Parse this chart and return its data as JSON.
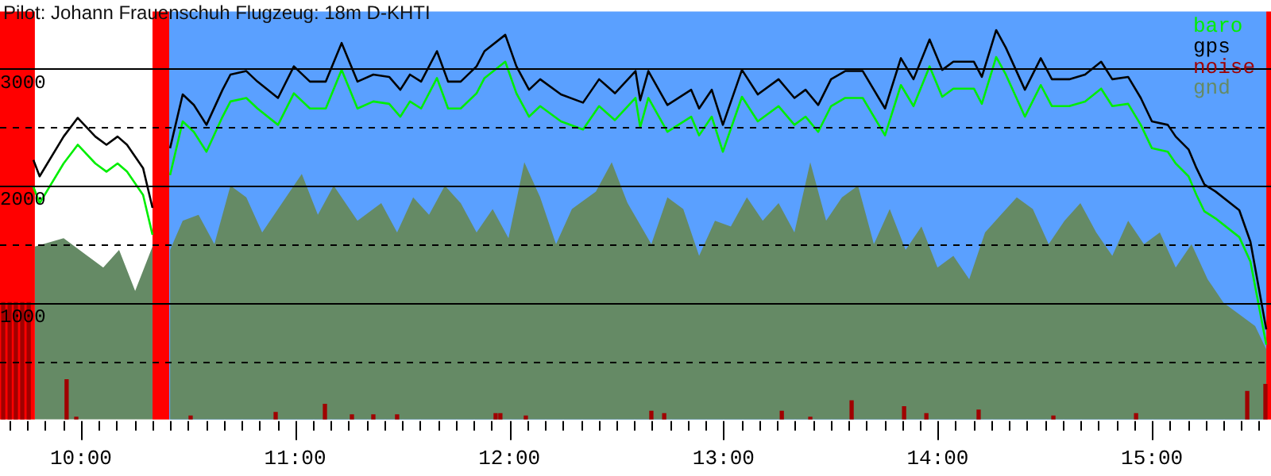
{
  "chart_data": {
    "type": "line",
    "title": "Pilot: Johann Frauenschuh Flugzeug: 18m D-KHTI",
    "xlim": [
      9.622,
      15.556
    ],
    "ylim": [
      0,
      3490
    ],
    "xticks": [
      {
        "value": 9.6667,
        "label": null
      },
      {
        "value": 9.75,
        "label": null
      },
      {
        "value": 9.8333,
        "label": null
      },
      {
        "value": 9.9167,
        "label": null
      },
      {
        "value": 10,
        "label": "10:00"
      },
      {
        "value": 10.0833,
        "label": null
      },
      {
        "value": 10.1667,
        "label": null
      },
      {
        "value": 10.25,
        "label": null
      },
      {
        "value": 10.3333,
        "label": null
      },
      {
        "value": 10.4167,
        "label": null
      },
      {
        "value": 10.5,
        "label": null
      },
      {
        "value": 10.5833,
        "label": null
      },
      {
        "value": 10.6667,
        "label": null
      },
      {
        "value": 10.75,
        "label": null
      },
      {
        "value": 10.8333,
        "label": null
      },
      {
        "value": 10.9167,
        "label": null
      },
      {
        "value": 11,
        "label": "11:00"
      },
      {
        "value": 11.0833,
        "label": null
      },
      {
        "value": 11.1667,
        "label": null
      },
      {
        "value": 11.25,
        "label": null
      },
      {
        "value": 11.3333,
        "label": null
      },
      {
        "value": 11.4167,
        "label": null
      },
      {
        "value": 11.5,
        "label": null
      },
      {
        "value": 11.5833,
        "label": null
      },
      {
        "value": 11.6667,
        "label": null
      },
      {
        "value": 11.75,
        "label": null
      },
      {
        "value": 11.8333,
        "label": null
      },
      {
        "value": 11.9167,
        "label": null
      },
      {
        "value": 12,
        "label": "12:00"
      },
      {
        "value": 12.0833,
        "label": null
      },
      {
        "value": 12.1667,
        "label": null
      },
      {
        "value": 12.25,
        "label": null
      },
      {
        "value": 12.3333,
        "label": null
      },
      {
        "value": 12.4167,
        "label": null
      },
      {
        "value": 12.5,
        "label": null
      },
      {
        "value": 12.5833,
        "label": null
      },
      {
        "value": 12.6667,
        "label": null
      },
      {
        "value": 12.75,
        "label": null
      },
      {
        "value": 12.8333,
        "label": null
      },
      {
        "value": 12.9167,
        "label": null
      },
      {
        "value": 13,
        "label": "13:00"
      },
      {
        "value": 13.0833,
        "label": null
      },
      {
        "value": 13.1667,
        "label": null
      },
      {
        "value": 13.25,
        "label": null
      },
      {
        "value": 13.3333,
        "label": null
      },
      {
        "value": 13.4167,
        "label": null
      },
      {
        "value": 13.5,
        "label": null
      },
      {
        "value": 13.5833,
        "label": null
      },
      {
        "value": 13.6667,
        "label": null
      },
      {
        "value": 13.75,
        "label": null
      },
      {
        "value": 13.8333,
        "label": null
      },
      {
        "value": 13.9167,
        "label": null
      },
      {
        "value": 14,
        "label": "14:00"
      },
      {
        "value": 14.0833,
        "label": null
      },
      {
        "value": 14.1667,
        "label": null
      },
      {
        "value": 14.25,
        "label": null
      },
      {
        "value": 14.3333,
        "label": null
      },
      {
        "value": 14.4167,
        "label": null
      },
      {
        "value": 14.5,
        "label": null
      },
      {
        "value": 14.5833,
        "label": null
      },
      {
        "value": 14.6667,
        "label": null
      },
      {
        "value": 14.75,
        "label": null
      },
      {
        "value": 14.8333,
        "label": null
      },
      {
        "value": 14.9167,
        "label": null
      },
      {
        "value": 15,
        "label": "15:00"
      },
      {
        "value": 15.0833,
        "label": null
      },
      {
        "value": 15.1667,
        "label": null
      },
      {
        "value": 15.25,
        "label": null
      },
      {
        "value": 15.3333,
        "label": null
      },
      {
        "value": 15.4167,
        "label": null
      },
      {
        "value": 15.5,
        "label": null
      }
    ],
    "yticks": [
      {
        "value": 500,
        "label": null
      },
      1000,
      {
        "value": 1500,
        "label": null
      },
      2000,
      {
        "value": 2500,
        "label": null
      },
      3000
    ],
    "grid": "y",
    "legend": "top right",
    "marker": "none",
    "line_style": "solid",
    "bands": [
      {
        "axis": "x",
        "from": 9.622,
        "to": 9.785,
        "color": "#ff0000"
      },
      {
        "axis": "x",
        "from": 9.785,
        "to": 10.334,
        "color": "#ffffff"
      },
      {
        "axis": "x",
        "from": 10.334,
        "to": 10.412,
        "color": "#ff0000"
      },
      {
        "axis": "x",
        "from": 10.412,
        "to": 15.534,
        "color": "#5aa0ff"
      },
      {
        "axis": "x",
        "from": 15.534,
        "to": 15.556,
        "color": "#ff0000"
      }
    ],
    "series": [
      {
        "name": "baro",
        "color": "#00ee00",
        "x": [
          9.778,
          9.807,
          9.919,
          9.985,
          10.067,
          10.119,
          10.171,
          10.215,
          10.29,
          10.334,
          10.364,
          10.416,
          10.475,
          10.527,
          10.586,
          10.661,
          10.698,
          10.772,
          10.824,
          10.92,
          10.994,
          11.069,
          11.143,
          11.217,
          11.291,
          11.365,
          11.439,
          11.491,
          11.536,
          11.588,
          11.662,
          11.714,
          11.773,
          11.847,
          11.884,
          11.981,
          12.033,
          12.092,
          12.144,
          12.241,
          12.344,
          12.419,
          12.493,
          12.589,
          12.611,
          12.649,
          12.738,
          12.849,
          12.886,
          12.945,
          12.997,
          13.086,
          13.16,
          13.257,
          13.331,
          13.383,
          13.442,
          13.502,
          13.568,
          13.65,
          13.754,
          13.828,
          13.887,
          13.962,
          14.021,
          14.073,
          14.169,
          14.206,
          14.273,
          14.318,
          14.407,
          14.481,
          14.533,
          14.614,
          14.688,
          14.763,
          14.815,
          14.889,
          14.948,
          15,
          15.074,
          15.111,
          15.171,
          15.208,
          15.245,
          15.297,
          15.408,
          15.46,
          15.534
        ],
        "values": [
          1990,
          1850,
          2190,
          2350,
          2190,
          2120,
          2190,
          2120,
          1920,
          1580,
          null,
          2090,
          2550,
          2460,
          2290,
          2590,
          2720,
          2750,
          2660,
          2520,
          2790,
          2660,
          2660,
          2990,
          2660,
          2720,
          2700,
          2590,
          2720,
          2660,
          2920,
          2660,
          2660,
          2790,
          2920,
          3060,
          2790,
          2590,
          2680,
          2550,
          2480,
          2680,
          2560,
          2750,
          2500,
          2750,
          2460,
          2590,
          2430,
          2590,
          2290,
          2760,
          2550,
          2680,
          2520,
          2590,
          2460,
          2680,
          2750,
          2750,
          2430,
          2860,
          2680,
          3020,
          2760,
          2830,
          2830,
          2700,
          3100,
          2950,
          2590,
          2860,
          2680,
          2680,
          2720,
          2830,
          2680,
          2700,
          2520,
          2320,
          2290,
          2190,
          2080,
          1920,
          1780,
          1720,
          1560,
          1350,
          640
        ]
      },
      {
        "name": "gps",
        "color": "#000000",
        "x": [
          9.778,
          9.807,
          9.919,
          9.985,
          10.067,
          10.119,
          10.171,
          10.215,
          10.29,
          10.334,
          10.364,
          10.416,
          10.475,
          10.527,
          10.586,
          10.661,
          10.698,
          10.772,
          10.824,
          10.92,
          10.994,
          11.069,
          11.143,
          11.217,
          11.291,
          11.365,
          11.439,
          11.491,
          11.536,
          11.588,
          11.662,
          11.714,
          11.773,
          11.847,
          11.884,
          11.981,
          12.033,
          12.092,
          12.144,
          12.241,
          12.344,
          12.419,
          12.493,
          12.589,
          12.611,
          12.649,
          12.738,
          12.849,
          12.886,
          12.945,
          12.997,
          13.086,
          13.16,
          13.257,
          13.331,
          13.383,
          13.442,
          13.502,
          13.568,
          13.65,
          13.754,
          13.828,
          13.887,
          13.962,
          14.021,
          14.073,
          14.169,
          14.206,
          14.273,
          14.318,
          14.407,
          14.481,
          14.533,
          14.614,
          14.688,
          14.763,
          14.815,
          14.889,
          14.948,
          15,
          15.074,
          15.111,
          15.171,
          15.208,
          15.245,
          15.297,
          15.408,
          15.46,
          15.534
        ],
        "values": [
          2220,
          2080,
          2420,
          2580,
          2420,
          2350,
          2420,
          2350,
          2150,
          1810,
          null,
          2320,
          2780,
          2690,
          2520,
          2820,
          2950,
          2980,
          2890,
          2750,
          3020,
          2890,
          2890,
          3220,
          2890,
          2950,
          2930,
          2820,
          2950,
          2890,
          3150,
          2890,
          2890,
          3020,
          3150,
          3290,
          3020,
          2820,
          2910,
          2780,
          2710,
          2910,
          2790,
          2980,
          2730,
          2980,
          2690,
          2820,
          2660,
          2820,
          2520,
          2990,
          2780,
          2910,
          2750,
          2820,
          2690,
          2910,
          2980,
          2980,
          2660,
          3090,
          2910,
          3250,
          2990,
          3060,
          3060,
          2930,
          3330,
          3180,
          2820,
          3090,
          2910,
          2910,
          2950,
          3060,
          2910,
          2930,
          2750,
          2550,
          2520,
          2420,
          2310,
          2150,
          2010,
          1950,
          1790,
          1520,
          770
        ]
      },
      {
        "name": "noise",
        "color": "#a00000",
        "type": "bar",
        "x": [
          9.637,
          9.667,
          9.696,
          9.726,
          9.756,
          9.933,
          9.978,
          10.512,
          10.909,
          11.139,
          11.265,
          11.365,
          11.476,
          11.936,
          11.958,
          12.077,
          12.663,
          12.723,
          13.272,
          13.405,
          13.598,
          13.843,
          13.947,
          14.191,
          14.54,
          14.926,
          15.445,
          15.53
        ],
        "values": [
          1000,
          1000,
          1000,
          1000,
          1000,
          340,
          20,
          30,
          60,
          130,
          40,
          40,
          40,
          50,
          50,
          30,
          70,
          50,
          70,
          20,
          160,
          110,
          50,
          80,
          30,
          50,
          240,
          300
        ]
      },
      {
        "name": "gnd",
        "color": "#658a65",
        "type": "area",
        "x": [
          9.785,
          9.919,
          10.03,
          10.104,
          10.178,
          10.253,
          10.334,
          10.364,
          10.416,
          10.475,
          10.549,
          10.623,
          10.698,
          10.772,
          10.846,
          10.92,
          11.031,
          11.106,
          11.18,
          11.291,
          11.402,
          11.476,
          11.551,
          11.625,
          11.699,
          11.773,
          11.847,
          11.922,
          11.996,
          12.07,
          12.144,
          12.218,
          12.292,
          12.404,
          12.478,
          12.552,
          12.663,
          12.738,
          12.812,
          12.886,
          12.96,
          13.034,
          13.109,
          13.183,
          13.257,
          13.331,
          13.405,
          13.479,
          13.553,
          13.628,
          13.702,
          13.776,
          13.85,
          13.924,
          13.999,
          14.073,
          14.147,
          14.221,
          14.295,
          14.369,
          14.444,
          14.518,
          14.592,
          14.666,
          14.74,
          14.815,
          14.889,
          14.963,
          15.037,
          15.111,
          15.185,
          15.26,
          15.334,
          15.408,
          15.482,
          15.534
        ],
        "values": [
          1480,
          1550,
          1400,
          1300,
          1450,
          1100,
          1480,
          null,
          1450,
          1700,
          1750,
          1500,
          2000,
          1900,
          1600,
          1800,
          2100,
          1750,
          2000,
          1700,
          1850,
          1600,
          1900,
          1750,
          2000,
          1850,
          1600,
          1800,
          1550,
          2200,
          1900,
          1500,
          1800,
          1950,
          2200,
          1850,
          1500,
          1900,
          1800,
          1400,
          1700,
          1650,
          1900,
          1700,
          1850,
          1600,
          2200,
          1700,
          1900,
          2000,
          1500,
          1800,
          1450,
          1650,
          1300,
          1400,
          1200,
          1600,
          1750,
          1900,
          1800,
          1500,
          1700,
          1850,
          1600,
          1400,
          1700,
          1500,
          1600,
          1300,
          1500,
          1200,
          1000,
          900,
          800,
          600
        ]
      }
    ]
  }
}
